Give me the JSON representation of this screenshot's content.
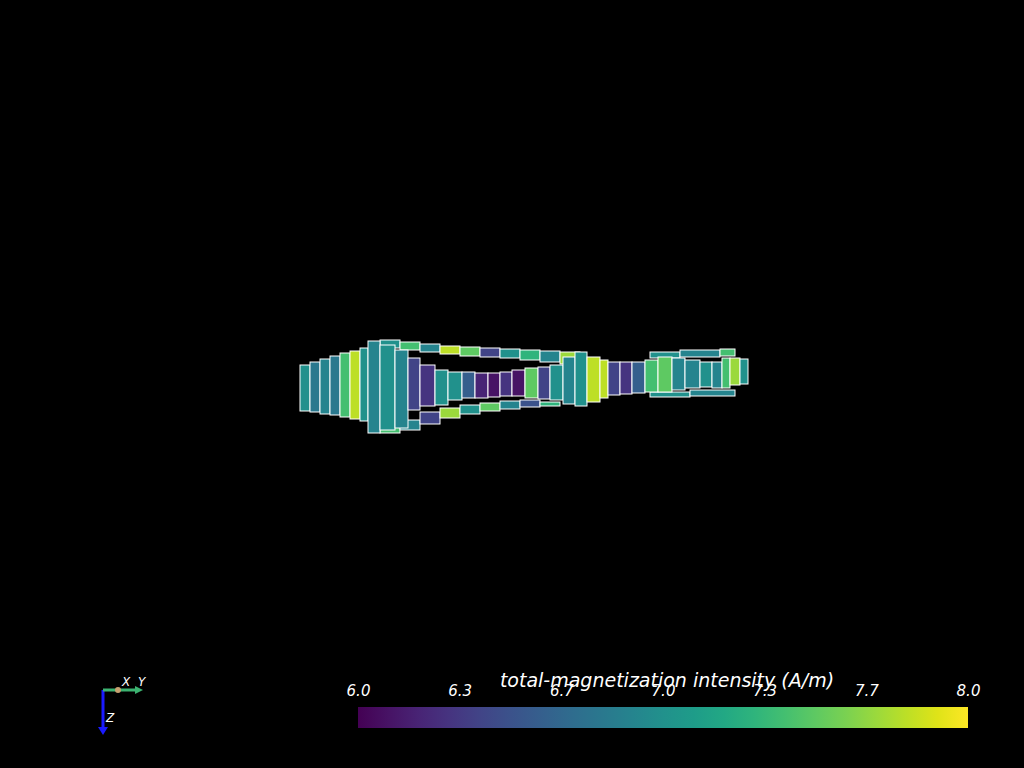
{
  "chart_data": {
    "type": "mesh",
    "ylim": [
      0,
      450
    ],
    "zlim": [
      -35,
      65
    ],
    "tick_labels": false,
    "axis_labels": {
      "x": "X",
      "y": "Y",
      "z": "Z"
    },
    "cells": [
      {
        "y0": 80,
        "y1": 100,
        "z0": -32,
        "z1": -24,
        "value": 7.0
      },
      {
        "y0": 100,
        "y1": 120,
        "z0": -30,
        "z1": -22,
        "value": 7.4
      },
      {
        "y0": 120,
        "y1": 140,
        "z0": -28,
        "z1": -20,
        "value": 6.9
      },
      {
        "y0": 140,
        "y1": 160,
        "z0": -26,
        "z1": -18,
        "value": 7.8
      },
      {
        "y0": 160,
        "y1": 180,
        "z0": -25,
        "z1": -16,
        "value": 7.5
      },
      {
        "y0": 180,
        "y1": 200,
        "z0": -24,
        "z1": -15,
        "value": 6.4
      },
      {
        "y0": 200,
        "y1": 220,
        "z0": -23,
        "z1": -14,
        "value": 7.0
      },
      {
        "y0": 220,
        "y1": 240,
        "z0": -22,
        "z1": -12,
        "value": 7.3
      },
      {
        "y0": 240,
        "y1": 260,
        "z0": -21,
        "z1": -10,
        "value": 6.9
      },
      {
        "y0": 260,
        "y1": 280,
        "z0": -20,
        "z1": -8,
        "value": 7.7
      },
      {
        "y0": 350,
        "y1": 380,
        "z0": -20,
        "z1": -14,
        "value": 7.0
      },
      {
        "y0": 380,
        "y1": 420,
        "z0": -22,
        "z1": -15,
        "value": 6.9
      },
      {
        "y0": 420,
        "y1": 435,
        "z0": -23,
        "z1": -16,
        "value": 7.4
      },
      {
        "y0": 80,
        "y1": 100,
        "z0": 53,
        "z1": 61,
        "value": 7.4
      },
      {
        "y0": 100,
        "y1": 120,
        "z0": 48,
        "z1": 58,
        "value": 6.9
      },
      {
        "y0": 120,
        "y1": 140,
        "z0": 40,
        "z1": 52,
        "value": 6.4
      },
      {
        "y0": 140,
        "y1": 160,
        "z0": 36,
        "z1": 46,
        "value": 7.7
      },
      {
        "y0": 160,
        "y1": 180,
        "z0": 33,
        "z1": 42,
        "value": 7.0
      },
      {
        "y0": 180,
        "y1": 200,
        "z0": 31,
        "z1": 39,
        "value": 7.5
      },
      {
        "y0": 200,
        "y1": 220,
        "z0": 29,
        "z1": 37,
        "value": 6.9
      },
      {
        "y0": 220,
        "y1": 240,
        "z0": 28,
        "z1": 35,
        "value": 6.5
      },
      {
        "y0": 240,
        "y1": 260,
        "z0": 30,
        "z1": 34,
        "value": 7.3
      },
      {
        "y0": 350,
        "y1": 390,
        "z0": 20,
        "z1": 25,
        "value": 7.0
      },
      {
        "y0": 390,
        "y1": 435,
        "z0": 18,
        "z1": 24,
        "value": 6.9
      },
      {
        "y0": 0,
        "y1": 10,
        "z0": -7,
        "z1": 39,
        "value": 7.0
      },
      {
        "y0": 10,
        "y1": 20,
        "z0": -10,
        "z1": 40,
        "value": 6.8
      },
      {
        "y0": 20,
        "y1": 30,
        "z0": -13,
        "z1": 42,
        "value": 6.9
      },
      {
        "y0": 30,
        "y1": 40,
        "z0": -16,
        "z1": 43,
        "value": 6.8
      },
      {
        "y0": 40,
        "y1": 50,
        "z0": -19,
        "z1": 45,
        "value": 7.4
      },
      {
        "y0": 50,
        "y1": 60,
        "z0": -21,
        "z1": 47,
        "value": 7.8
      },
      {
        "y0": 60,
        "y1": 68,
        "z0": -24,
        "z1": 49,
        "value": 7.0
      },
      {
        "y0": 68,
        "y1": 80,
        "z0": -31,
        "z1": 61,
        "value": 6.9
      },
      {
        "y0": 80,
        "y1": 95,
        "z0": -27,
        "z1": 58,
        "value": 7.0
      },
      {
        "y0": 95,
        "y1": 108,
        "z0": -22,
        "z1": 56,
        "value": 6.9
      },
      {
        "y0": 108,
        "y1": 120,
        "z0": -14,
        "z1": 38,
        "value": 6.4
      },
      {
        "y0": 120,
        "y1": 135,
        "z0": -7,
        "z1": 34,
        "value": 6.3
      },
      {
        "y0": 135,
        "y1": 148,
        "z0": -2,
        "z1": 33,
        "value": 7.0
      },
      {
        "y0": 148,
        "y1": 162,
        "z0": 0,
        "z1": 28,
        "value": 7.0
      },
      {
        "y0": 162,
        "y1": 175,
        "z0": 0,
        "z1": 26,
        "value": 6.6
      },
      {
        "y0": 175,
        "y1": 188,
        "z0": 1,
        "z1": 26,
        "value": 6.2
      },
      {
        "y0": 188,
        "y1": 200,
        "z0": 1,
        "z1": 25,
        "value": 6.1
      },
      {
        "y0": 200,
        "y1": 212,
        "z0": 0,
        "z1": 24,
        "value": 6.3
      },
      {
        "y0": 212,
        "y1": 225,
        "z0": -2,
        "z1": 24,
        "value": 6.1
      },
      {
        "y0": 225,
        "y1": 238,
        "z0": -4,
        "z1": 26,
        "value": 7.5
      },
      {
        "y0": 238,
        "y1": 250,
        "z0": -5,
        "z1": 27,
        "value": 6.4
      },
      {
        "y0": 250,
        "y1": 263,
        "z0": -7,
        "z1": 28,
        "value": 7.0
      },
      {
        "y0": 263,
        "y1": 275,
        "z0": -15,
        "z1": 32,
        "value": 6.9
      },
      {
        "y0": 275,
        "y1": 287,
        "z0": -20,
        "z1": 34,
        "value": 7.0
      },
      {
        "y0": 287,
        "y1": 300,
        "z0": -15,
        "z1": 30,
        "value": 7.8
      },
      {
        "y0": 300,
        "y1": 308,
        "z0": -12,
        "z1": 26,
        "value": 7.8
      },
      {
        "y0": 308,
        "y1": 320,
        "z0": -10,
        "z1": 23,
        "value": 6.4
      },
      {
        "y0": 320,
        "y1": 332,
        "z0": -10,
        "z1": 22,
        "value": 6.3
      },
      {
        "y0": 332,
        "y1": 345,
        "z0": -10,
        "z1": 21,
        "value": 6.6
      },
      {
        "y0": 345,
        "y1": 358,
        "z0": -12,
        "z1": 20,
        "value": 7.4
      },
      {
        "y0": 358,
        "y1": 372,
        "z0": -15,
        "z1": 20,
        "value": 7.5
      },
      {
        "y0": 372,
        "y1": 385,
        "z0": -14,
        "z1": 18,
        "value": 6.9
      },
      {
        "y0": 385,
        "y1": 400,
        "z0": -12,
        "z1": 16,
        "value": 6.9
      },
      {
        "y0": 400,
        "y1": 412,
        "z0": -10,
        "z1": 15,
        "value": 7.0
      },
      {
        "y0": 412,
        "y1": 422,
        "z0": -10,
        "z1": 16,
        "value": 6.9
      },
      {
        "y0": 422,
        "y1": 430,
        "z0": -14,
        "z1": 16,
        "value": 7.4
      },
      {
        "y0": 430,
        "y1": 440,
        "z0": -14,
        "z1": 13,
        "value": 7.7
      },
      {
        "y0": 440,
        "y1": 448,
        "z0": -13,
        "z1": 12,
        "value": 7.0
      }
    ],
    "colorbar": {
      "title": "total-magnetization intensity (A/m)",
      "range": [
        6.0,
        8.0
      ],
      "ticks": [
        {
          "value": 6.0,
          "label": "6.0"
        },
        {
          "value": 6.333,
          "label": "6.3"
        },
        {
          "value": 6.667,
          "label": "6.7"
        },
        {
          "value": 7.0,
          "label": "7.0"
        },
        {
          "value": 7.333,
          "label": "7.3"
        },
        {
          "value": 7.667,
          "label": "7.7"
        },
        {
          "value": 8.0,
          "label": "8.0"
        }
      ]
    }
  }
}
